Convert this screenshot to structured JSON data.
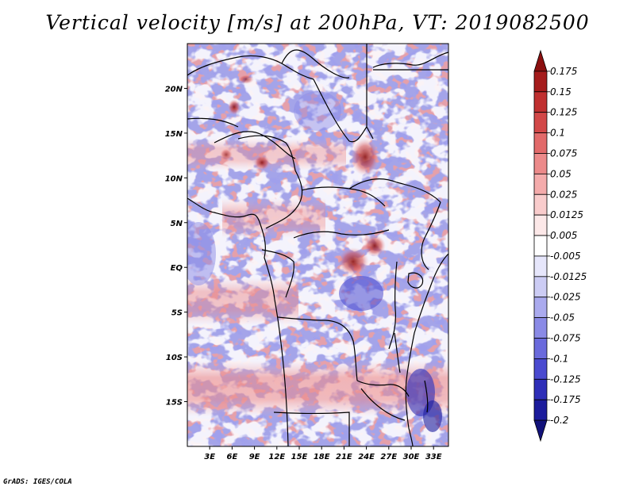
{
  "title": "Vertical velocity [m/s] at 200hPa, VT: 2019082500",
  "credit": "GrADS: IGES/COLA",
  "map": {
    "lon_range": [
      0,
      35
    ],
    "lat_range": [
      -20,
      25
    ],
    "lon_ticks": [
      "3E",
      "6E",
      "9E",
      "12E",
      "15E",
      "18E",
      "21E",
      "24E",
      "27E",
      "30E",
      "33E"
    ],
    "lat_ticks": [
      "20N",
      "15N",
      "10N",
      "5N",
      "EQ",
      "5S",
      "10S",
      "15S"
    ],
    "field": "Vertical velocity at 200hPa"
  },
  "colorbar": {
    "labels": [
      "0.175",
      "0.15",
      "0.125",
      "0.1",
      "0.075",
      "0.05",
      "0.025",
      "0.0125",
      "0.005",
      "-0.005",
      "-0.0125",
      "-0.025",
      "-0.05",
      "-0.075",
      "-0.1",
      "-0.125",
      "-0.175",
      "-0.2"
    ],
    "colors": [
      "#8b0f0f",
      "#a51c1c",
      "#c03030",
      "#d24848",
      "#e26a6a",
      "#ec8a8a",
      "#f4abab",
      "#f9cccc",
      "#fce8e8",
      "#ffffff",
      "#e6e6fb",
      "#ccccf4",
      "#aaaaee",
      "#8a8ae6",
      "#6a6adc",
      "#4a4ad0",
      "#2e2eb8",
      "#1c1c9c",
      "#12127a"
    ]
  }
}
